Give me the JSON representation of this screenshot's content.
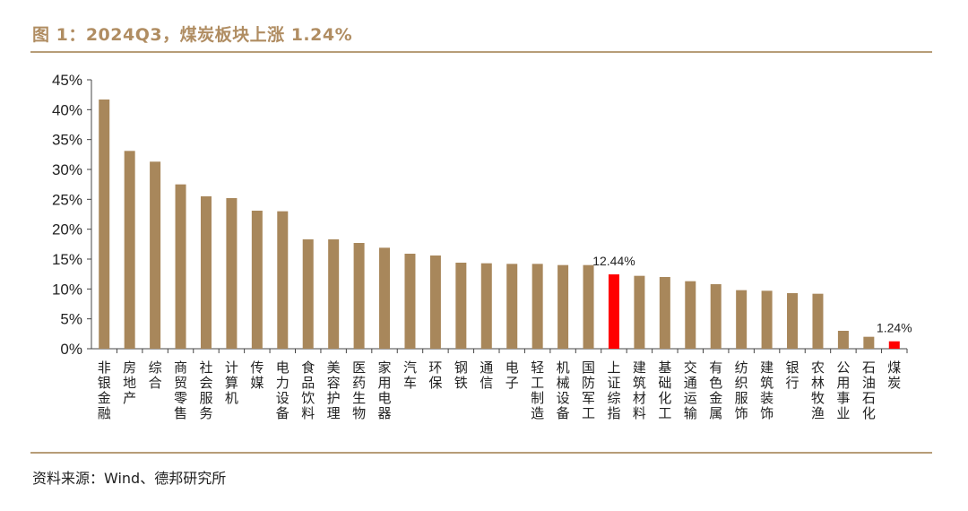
{
  "title": "图 1：2024Q3，煤炭板块上涨 1.24%",
  "source": "资料来源：Wind、德邦研究所",
  "colors": {
    "bar": "#a8875b",
    "highlight": "#ff0000",
    "axis": "#444444"
  },
  "chart_data": {
    "type": "bar",
    "title": "2024Q3，煤炭板块上涨 1.24%",
    "xlabel": "",
    "ylabel": "",
    "ylim": [
      0,
      45
    ],
    "yticks": [
      0,
      5,
      10,
      15,
      20,
      25,
      30,
      35,
      40,
      45
    ],
    "ytick_labels": [
      "0%",
      "5%",
      "10%",
      "15%",
      "20%",
      "25%",
      "30%",
      "35%",
      "40%",
      "45%"
    ],
    "grid": false,
    "categories": [
      "非银金融",
      "房地产",
      "综合",
      "商贸零售",
      "社会服务",
      "计算机",
      "传媒",
      "电力设备",
      "食品饮料",
      "美容护理",
      "医药生物",
      "家用电器",
      "汽车",
      "环保",
      "钢铁",
      "通信",
      "电子",
      "轻工制造",
      "机械设备",
      "国防军工",
      "上证综指",
      "建筑材料",
      "基础化工",
      "交通运输",
      "有色金属",
      "纺织服饰",
      "建筑装饰",
      "银行",
      "农林牧渔",
      "公用事业",
      "石油石化",
      "煤炭"
    ],
    "values": [
      41.7,
      33.1,
      31.3,
      27.5,
      25.5,
      25.2,
      23.1,
      23.0,
      18.3,
      18.3,
      17.7,
      16.9,
      15.9,
      15.6,
      14.4,
      14.3,
      14.2,
      14.2,
      14.0,
      14.0,
      12.44,
      12.2,
      12.0,
      11.3,
      10.8,
      9.8,
      9.7,
      9.3,
      9.2,
      3.0,
      2.0,
      1.24
    ],
    "highlighted": [
      "上证综指",
      "煤炭"
    ],
    "data_labels": [
      {
        "category": "上证综指",
        "text": "12.44%"
      },
      {
        "category": "煤炭",
        "text": "1.24%"
      }
    ]
  }
}
